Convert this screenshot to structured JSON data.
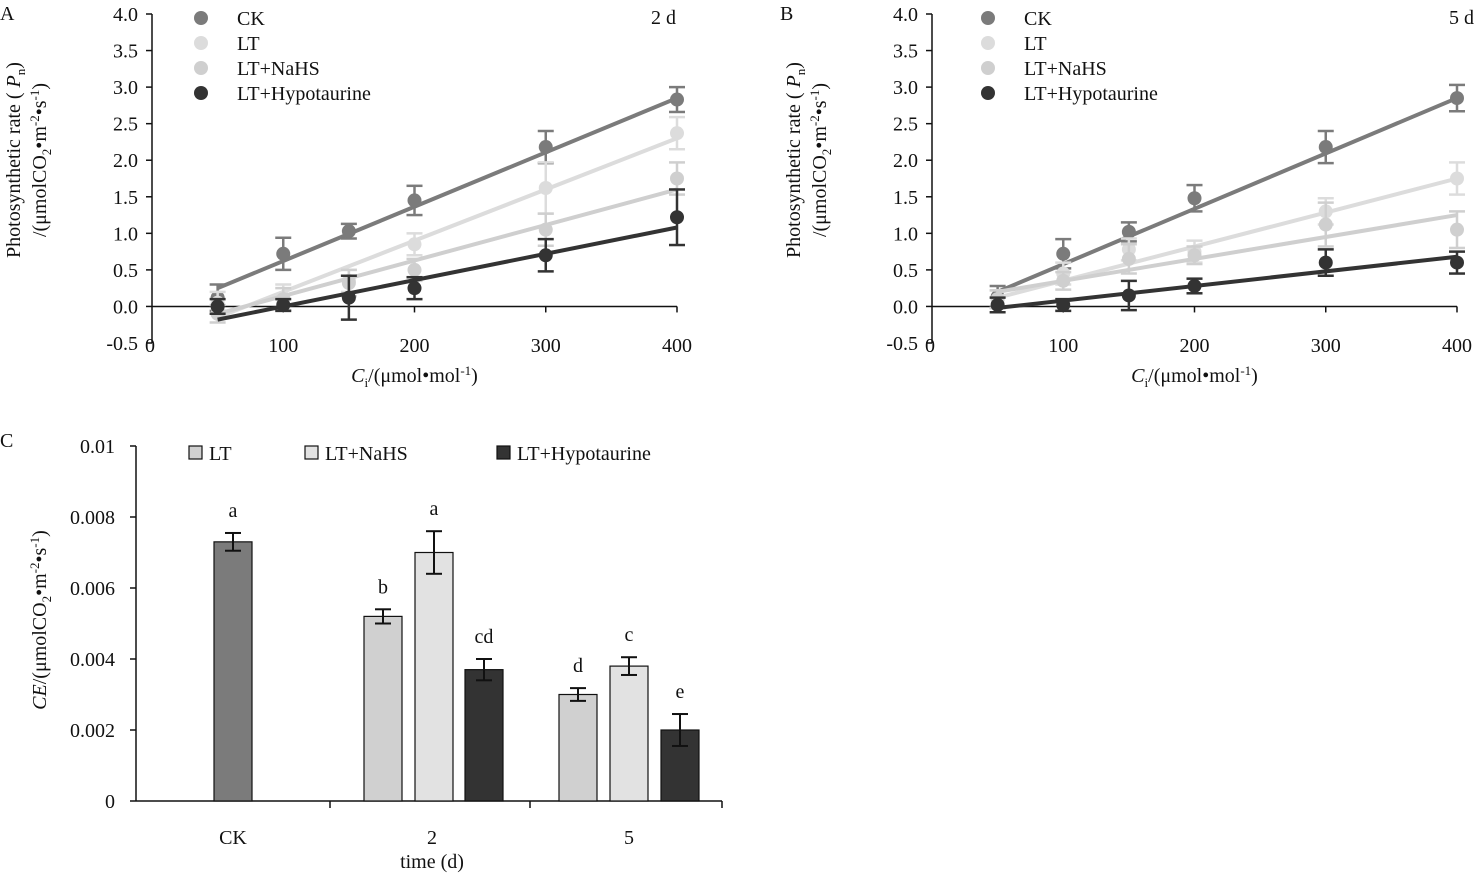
{
  "chart_data": [
    {
      "panel": "A",
      "type": "scatter",
      "title": "2 d",
      "xlabel": "Ci/(μmol•mol-1)",
      "ylabel_line1": "Photosynthetic rate ( P n)",
      "ylabel_line2": "/(μmolCO2•m-2•s-1)",
      "xlim": [
        0,
        400
      ],
      "ylim": [
        -0.5,
        4.0
      ],
      "xticks": [
        0,
        100,
        200,
        300,
        400
      ],
      "yticks": [
        "-0.5",
        "0.0",
        "0.5",
        "1.0",
        "1.5",
        "2.0",
        "2.5",
        "3.0",
        "3.5",
        "4.0"
      ],
      "legend": "top-left",
      "x": [
        50,
        100,
        150,
        200,
        300,
        400
      ],
      "series": [
        {
          "name": "CK",
          "color": "#7b7b7b",
          "values": [
            0.12,
            0.72,
            1.03,
            1.45,
            2.18,
            2.83
          ],
          "errors": [
            0.18,
            0.22,
            0.1,
            0.2,
            0.22,
            0.17
          ],
          "fit": [
            0.25,
            2.85
          ]
        },
        {
          "name": "LT",
          "color": "#dcdcdc",
          "values": [
            0.05,
            0.12,
            0.35,
            0.85,
            1.62,
            2.37
          ],
          "errors": [
            0.15,
            0.18,
            0.15,
            0.15,
            0.35,
            0.22
          ],
          "fit": [
            -0.15,
            2.3
          ]
        },
        {
          "name": "LT+NaHS",
          "color": "#cfcfcf",
          "values": [
            -0.1,
            0.1,
            0.32,
            0.5,
            1.05,
            1.75
          ],
          "errors": [
            0.12,
            0.15,
            0.18,
            0.15,
            0.22,
            0.22
          ],
          "fit": [
            -0.1,
            1.6
          ]
        },
        {
          "name": "LT+Hypotaurine",
          "color": "#333333",
          "values": [
            0.0,
            0.02,
            0.12,
            0.25,
            0.7,
            1.22
          ],
          "errors": [
            0.1,
            0.08,
            0.3,
            0.15,
            0.22,
            0.38
          ],
          "fit": [
            -0.18,
            1.08
          ]
        }
      ]
    },
    {
      "panel": "B",
      "type": "scatter",
      "title": "5 d",
      "xlabel": "Ci/(μmol•mol-1)",
      "ylabel_line1": "Photosynthetic rate ( P n)",
      "ylabel_line2": "/(μmolCO2•m-2•s-1)",
      "xlim": [
        0,
        400
      ],
      "ylim": [
        -0.5,
        4.0
      ],
      "xticks": [
        0,
        100,
        200,
        300,
        400
      ],
      "yticks": [
        "-0.5",
        "0.0",
        "0.5",
        "1.0",
        "1.5",
        "2.0",
        "2.5",
        "3.0",
        "3.5",
        "4.0"
      ],
      "legend": "top-left",
      "x": [
        50,
        100,
        150,
        200,
        300,
        400
      ],
      "series": [
        {
          "name": "CK",
          "color": "#7b7b7b",
          "values": [
            0.13,
            0.72,
            1.02,
            1.48,
            2.18,
            2.85
          ],
          "errors": [
            0.15,
            0.2,
            0.13,
            0.18,
            0.22,
            0.18
          ],
          "fit": [
            0.2,
            2.85
          ]
        },
        {
          "name": "LT",
          "color": "#dcdcdc",
          "values": [
            0.1,
            0.45,
            0.78,
            0.75,
            1.3,
            1.75
          ],
          "errors": [
            0.12,
            0.15,
            0.15,
            0.15,
            0.18,
            0.22
          ],
          "fit": [
            0.12,
            1.75
          ]
        },
        {
          "name": "LT+NaHS",
          "color": "#cfcfcf",
          "values": [
            0.1,
            0.35,
            0.65,
            0.7,
            1.12,
            1.05
          ],
          "errors": [
            0.12,
            0.12,
            0.2,
            0.12,
            0.3,
            0.25
          ],
          "fit": [
            0.2,
            1.25
          ]
        },
        {
          "name": "LT+Hypotaurine",
          "color": "#333333",
          "values": [
            0.02,
            0.02,
            0.15,
            0.28,
            0.6,
            0.6
          ],
          "errors": [
            0.1,
            0.08,
            0.2,
            0.1,
            0.18,
            0.15
          ],
          "fit": [
            -0.02,
            0.68
          ]
        }
      ]
    },
    {
      "panel": "C",
      "type": "bar",
      "xlabel": "time (d)",
      "ylabel": "CE/(μmolCO2•m-2•s-1)",
      "ylim": [
        0,
        0.01
      ],
      "yticks": [
        "0",
        "0.002",
        "0.004",
        "0.006",
        "0.008",
        "0.01"
      ],
      "categories": [
        "CK",
        "2",
        "5"
      ],
      "legend": "top",
      "legend_entries": [
        {
          "name": "LT",
          "color": "#d0d0d0"
        },
        {
          "name": "LT+NaHS",
          "color": "#e2e2e2"
        },
        {
          "name": "LT+Hypotaurine",
          "color": "#333333"
        }
      ],
      "bars": [
        {
          "category": "CK",
          "series": "CK",
          "color": "#7b7b7b",
          "value": 0.0073,
          "error": 0.00025,
          "letter": "a"
        },
        {
          "category": "2",
          "series": "LT",
          "color": "#d0d0d0",
          "value": 0.0052,
          "error": 0.0002,
          "letter": "b"
        },
        {
          "category": "2",
          "series": "LT+NaHS",
          "color": "#e2e2e2",
          "value": 0.007,
          "error": 0.0006,
          "letter": "a"
        },
        {
          "category": "2",
          "series": "LT+Hypotaurine",
          "color": "#333333",
          "value": 0.0037,
          "error": 0.0003,
          "letter": "cd"
        },
        {
          "category": "5",
          "series": "LT",
          "color": "#d0d0d0",
          "value": 0.003,
          "error": 0.00018,
          "letter": "d"
        },
        {
          "category": "5",
          "series": "LT+NaHS",
          "color": "#e2e2e2",
          "value": 0.0038,
          "error": 0.00025,
          "letter": "c"
        },
        {
          "category": "5",
          "series": "LT+Hypotaurine",
          "color": "#333333",
          "value": 0.002,
          "error": 0.00045,
          "letter": "e"
        }
      ]
    }
  ]
}
